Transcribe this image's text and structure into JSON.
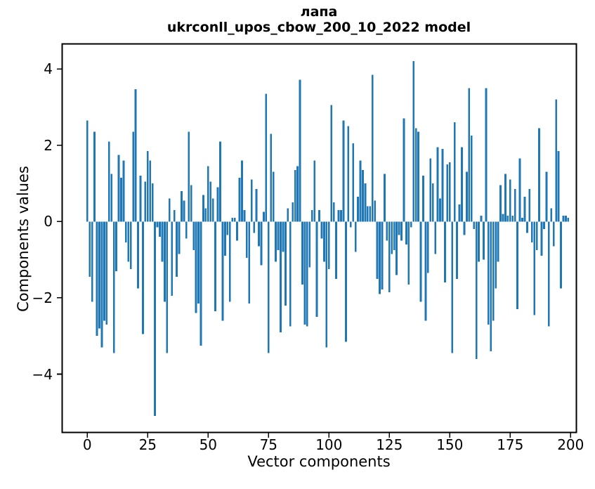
{
  "figure": {
    "title_line1": "лапа",
    "title_line2": "ukrconll_upos_cbow_200_10_2022 model",
    "xlabel": "Vector components",
    "ylabel": "Components values"
  },
  "chart_data": {
    "type": "bar",
    "title": "лапа",
    "subtitle": "ukrconll_upos_cbow_200_10_2022 model",
    "xlabel": "Vector components",
    "ylabel": "Components values",
    "bar_color": "#1f77b4",
    "background_color": "#ffffff",
    "grid": false,
    "legend": "none",
    "x_start": 0,
    "x_ticks": [
      0,
      25,
      50,
      75,
      100,
      125,
      150,
      175,
      200
    ],
    "y_ticks": [
      4,
      2,
      0,
      -2,
      -4
    ],
    "xlim": [
      -10.6,
      202
    ],
    "ylim": [
      -5.57,
      4.67
    ],
    "values": [
      2.65,
      -1.45,
      -2.1,
      2.35,
      -3.0,
      -2.8,
      -3.3,
      -2.6,
      -2.7,
      2.1,
      1.25,
      -3.45,
      -1.3,
      1.75,
      1.15,
      1.6,
      -0.55,
      -1.05,
      -1.25,
      2.35,
      3.47,
      -1.75,
      1.2,
      -2.95,
      1.05,
      1.85,
      1.6,
      1.0,
      -5.1,
      -0.15,
      -0.4,
      -1.05,
      -2.1,
      -3.45,
      0.6,
      -1.95,
      0.3,
      -1.45,
      -0.85,
      0.8,
      0.55,
      -0.45,
      2.35,
      0.95,
      -0.75,
      -2.4,
      -2.15,
      -3.25,
      0.7,
      0.35,
      1.45,
      1.05,
      0.6,
      -2.35,
      0.9,
      2.1,
      -2.6,
      -0.9,
      -0.35,
      -2.1,
      0.1,
      0.1,
      -0.5,
      1.15,
      1.6,
      0.3,
      -0.95,
      -2.15,
      1.1,
      -0.3,
      0.85,
      -0.65,
      -1.15,
      0.25,
      3.35,
      -3.45,
      2.3,
      1.3,
      -1.05,
      -0.75,
      -2.9,
      -0.8,
      -2.2,
      0.35,
      -2.75,
      0.5,
      1.35,
      1.45,
      3.72,
      -1.65,
      -2.7,
      -2.75,
      -1.2,
      0.3,
      1.6,
      -2.5,
      0.3,
      -0.45,
      -1.05,
      -3.3,
      -1.25,
      3.05,
      0.5,
      -1.5,
      0.3,
      0.3,
      2.65,
      -3.15,
      2.5,
      -0.15,
      2.05,
      -0.8,
      0.65,
      1.6,
      1.35,
      1.0,
      0.4,
      0.4,
      3.85,
      0.55,
      -1.5,
      -1.9,
      -1.78,
      1.25,
      -0.5,
      -1.85,
      -0.85,
      -0.75,
      -1.4,
      -0.35,
      -0.5,
      2.7,
      -0.6,
      -1.65,
      -0.15,
      4.2,
      2.45,
      2.35,
      -2.1,
      1.2,
      -2.6,
      -1.35,
      1.65,
      1.0,
      -0.85,
      1.95,
      0.6,
      1.9,
      -1.6,
      1.5,
      1.55,
      -3.45,
      2.6,
      -1.5,
      0.45,
      1.95,
      -0.35,
      1.3,
      3.5,
      2.25,
      -0.2,
      -3.6,
      -1.05,
      0.15,
      -1.0,
      3.5,
      -2.7,
      -3.4,
      -2.6,
      -1.75,
      -1.05,
      0.95,
      0.2,
      1.25,
      0.15,
      1.1,
      0.15,
      0.85,
      -2.3,
      1.65,
      0.1,
      0.65,
      -0.3,
      0.85,
      -0.55,
      -2.45,
      -0.75,
      2.45,
      -0.9,
      -0.2,
      1.3,
      -2.75,
      0.35,
      -0.65,
      3.2,
      1.85,
      -1.75,
      0.15,
      0.15,
      0.1
    ]
  }
}
